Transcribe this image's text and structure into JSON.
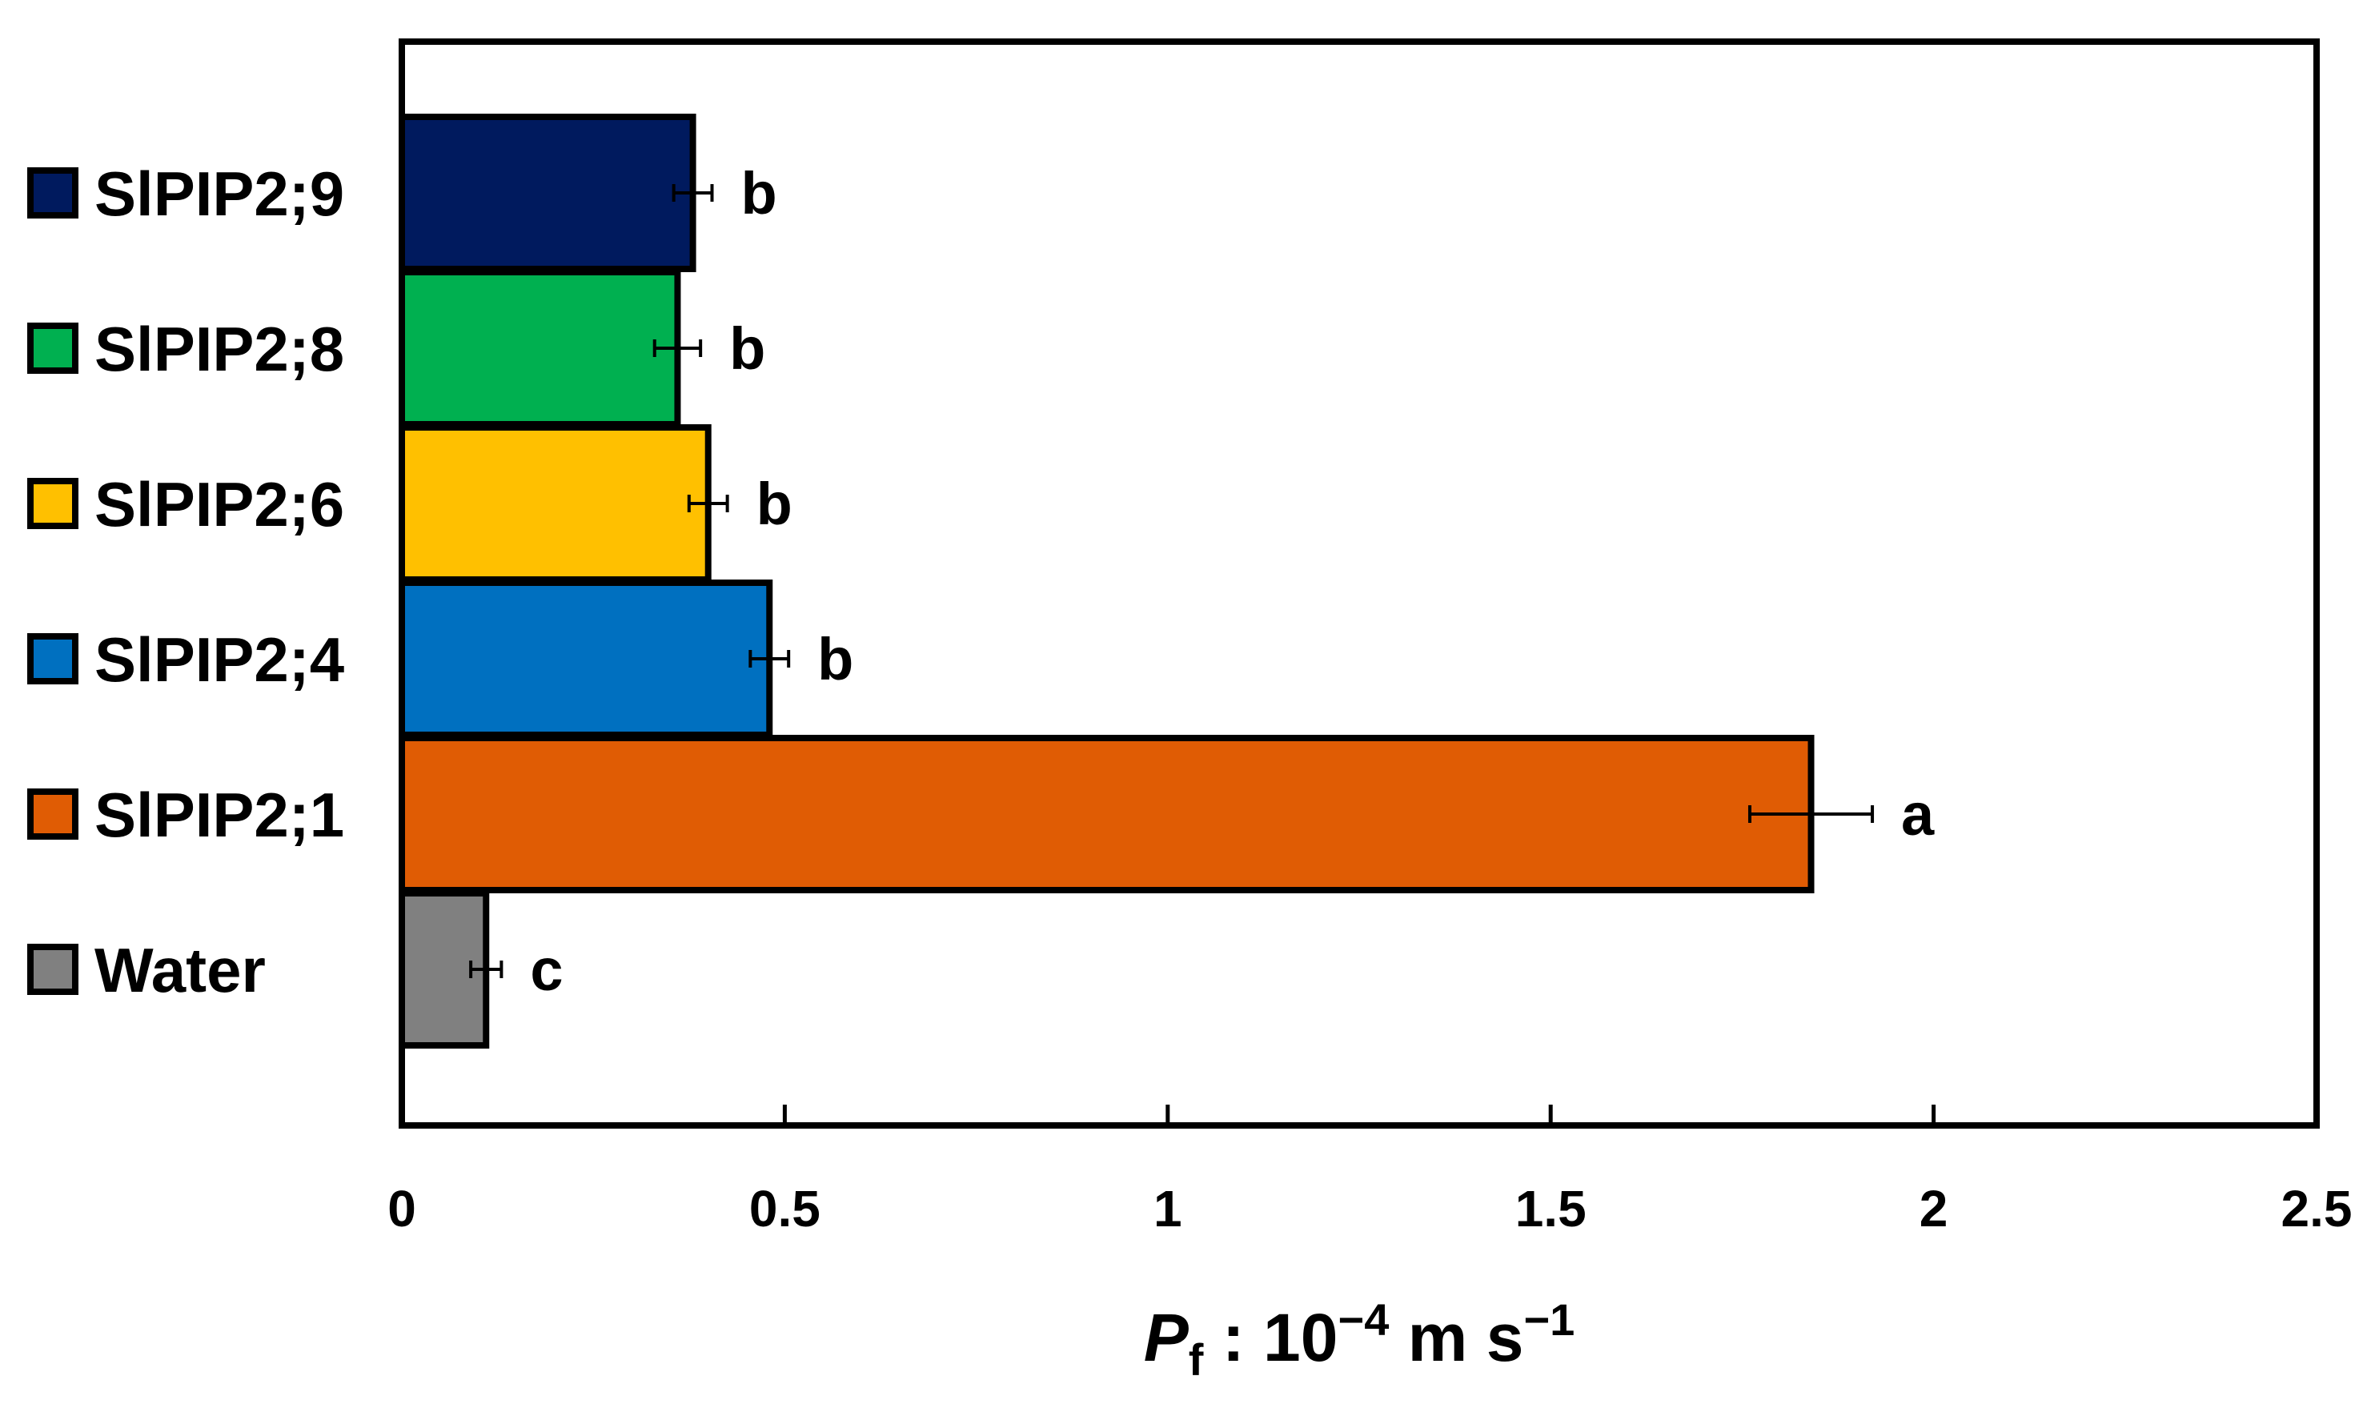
{
  "chart_data": {
    "type": "bar",
    "orientation": "horizontal",
    "categories": [
      "Water",
      "SlPIP2;1",
      "SlPIP2;4",
      "SlPIP2;6",
      "SlPIP2;8",
      "SlPIP2;9"
    ],
    "values": [
      0.11,
      1.84,
      0.48,
      0.4,
      0.36,
      0.38
    ],
    "errors": [
      0.02,
      0.08,
      0.025,
      0.025,
      0.03,
      0.025
    ],
    "significance": [
      "c",
      "a",
      "b",
      "b",
      "b",
      "b"
    ],
    "colors": [
      "#808080",
      "#E05C04",
      "#0070C0",
      "#FFC000",
      "#00B050",
      "#001A5E"
    ],
    "xlabel": {
      "italic": "P",
      "subscript": "f",
      "rest": " : 10",
      "exp1": "−4",
      "unit": " m s",
      "exp2": "−1"
    },
    "xlim": [
      0,
      2.5
    ],
    "xticks": [
      0,
      0.5,
      1,
      1.5,
      2,
      2.5
    ],
    "xtick_labels": [
      "0",
      "0.5",
      "1",
      "1.5",
      "2",
      "2.5"
    ],
    "legend": {
      "placement": "left",
      "entries": [
        "SlPIP2;9",
        "SlPIP2;8",
        "SlPIP2;6",
        "SlPIP2;4",
        "SlPIP2;1",
        "Water"
      ]
    },
    "grid": false
  }
}
